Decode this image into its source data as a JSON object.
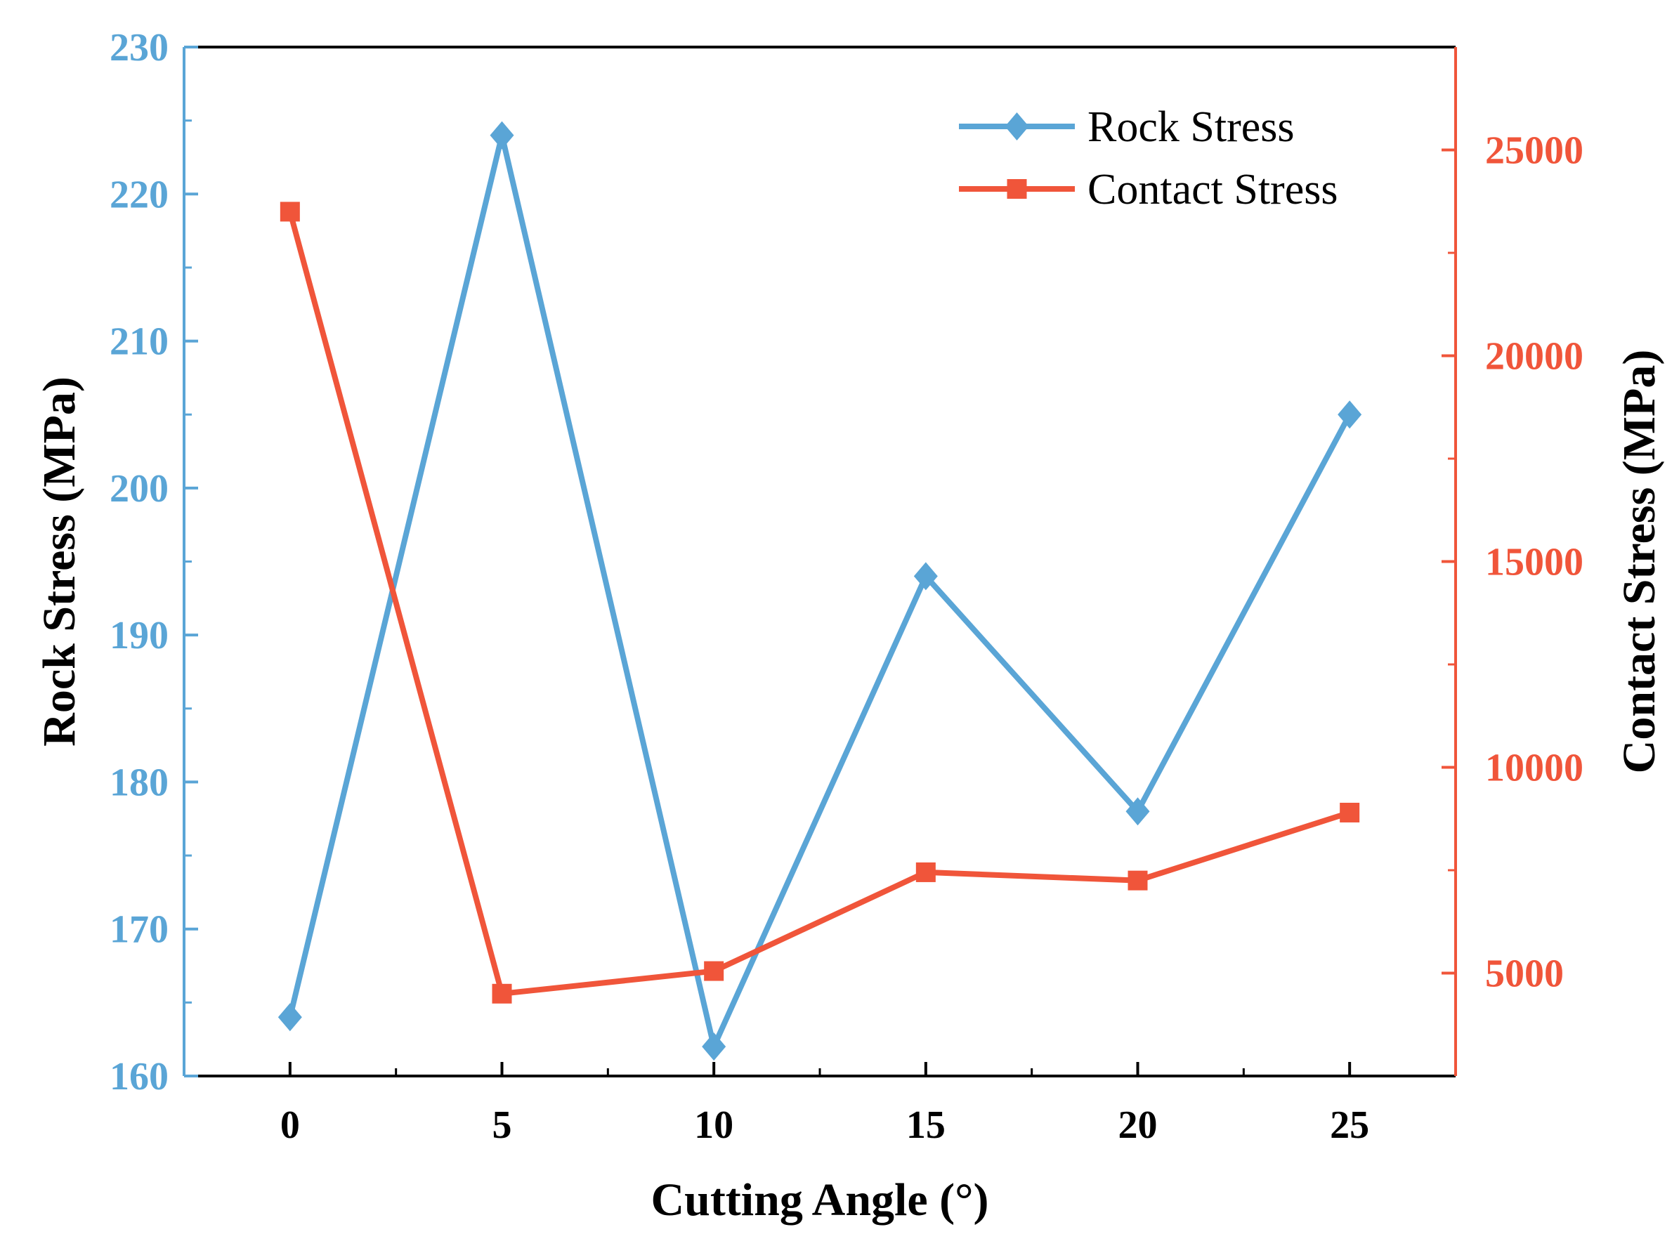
{
  "chart_data": {
    "type": "line",
    "x": [
      0,
      5,
      10,
      15,
      20,
      25
    ],
    "x_ticks": [
      "0",
      "5",
      "10",
      "15",
      "20",
      "25"
    ],
    "xlabel": "Cutting Angle (°)",
    "xlim": [
      -2.5,
      27.5
    ],
    "y_left": {
      "label": "Rock Stress (MPa)",
      "lim": [
        160,
        230
      ],
      "ticks": [
        "160",
        "170",
        "180",
        "190",
        "200",
        "210",
        "220",
        "230"
      ],
      "color": "#5aa5d6"
    },
    "y_right": {
      "label": "Contact Stress (MPa)",
      "lim": [
        2500,
        27500
      ],
      "ticks": [
        "5000",
        "10000",
        "15000",
        "20000",
        "25000"
      ],
      "color": "#f0553a"
    },
    "series": [
      {
        "name": "Rock Stress",
        "axis": "left",
        "marker": "diamond",
        "color": "#5aa5d6",
        "values": [
          164,
          224,
          162,
          194,
          178,
          205
        ]
      },
      {
        "name": "Contact Stress",
        "axis": "right",
        "marker": "square",
        "color": "#f0553a",
        "values": [
          23500,
          4500,
          5050,
          7450,
          7250,
          8900
        ]
      }
    ],
    "legend_position": "top-right"
  }
}
